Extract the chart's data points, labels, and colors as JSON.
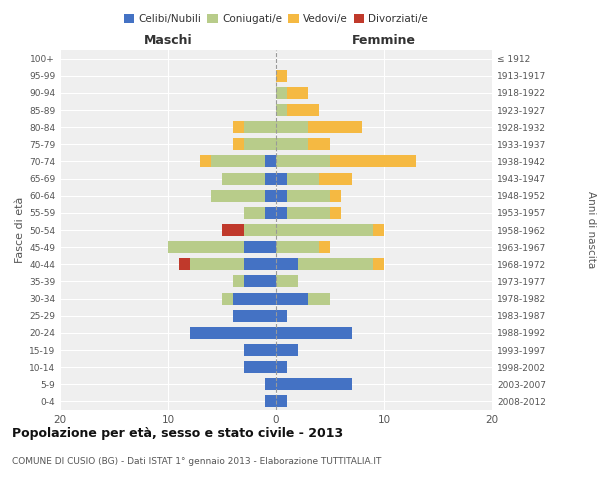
{
  "age_groups": [
    "0-4",
    "5-9",
    "10-14",
    "15-19",
    "20-24",
    "25-29",
    "30-34",
    "35-39",
    "40-44",
    "45-49",
    "50-54",
    "55-59",
    "60-64",
    "65-69",
    "70-74",
    "75-79",
    "80-84",
    "85-89",
    "90-94",
    "95-99",
    "100+"
  ],
  "birth_years": [
    "2008-2012",
    "2003-2007",
    "1998-2002",
    "1993-1997",
    "1988-1992",
    "1983-1987",
    "1978-1982",
    "1973-1977",
    "1968-1972",
    "1963-1967",
    "1958-1962",
    "1953-1957",
    "1948-1952",
    "1943-1947",
    "1938-1942",
    "1933-1937",
    "1928-1932",
    "1923-1927",
    "1918-1922",
    "1913-1917",
    "≤ 1912"
  ],
  "maschi": {
    "celibi": [
      1,
      1,
      3,
      3,
      8,
      4,
      4,
      3,
      3,
      3,
      0,
      1,
      1,
      1,
      1,
      0,
      0,
      0,
      0,
      0,
      0
    ],
    "coniugati": [
      0,
      0,
      0,
      0,
      0,
      0,
      1,
      1,
      5,
      7,
      3,
      2,
      5,
      4,
      5,
      3,
      3,
      0,
      0,
      0,
      0
    ],
    "vedovi": [
      0,
      0,
      0,
      0,
      0,
      0,
      0,
      0,
      0,
      0,
      0,
      0,
      0,
      0,
      1,
      1,
      1,
      0,
      0,
      0,
      0
    ],
    "divorziati": [
      0,
      0,
      0,
      0,
      0,
      0,
      0,
      0,
      1,
      0,
      2,
      0,
      0,
      0,
      0,
      0,
      0,
      0,
      0,
      0,
      0
    ]
  },
  "femmine": {
    "nubili": [
      1,
      7,
      1,
      2,
      7,
      1,
      3,
      0,
      2,
      0,
      0,
      1,
      1,
      1,
      0,
      0,
      0,
      0,
      0,
      0,
      0
    ],
    "coniugate": [
      0,
      0,
      0,
      0,
      0,
      0,
      2,
      2,
      7,
      4,
      9,
      4,
      4,
      3,
      5,
      3,
      3,
      1,
      1,
      0,
      0
    ],
    "vedove": [
      0,
      0,
      0,
      0,
      0,
      0,
      0,
      0,
      1,
      1,
      1,
      1,
      1,
      3,
      8,
      2,
      5,
      3,
      2,
      1,
      0
    ],
    "divorziate": [
      0,
      0,
      0,
      0,
      0,
      0,
      0,
      0,
      0,
      0,
      0,
      0,
      0,
      0,
      0,
      0,
      0,
      0,
      0,
      0,
      0
    ]
  },
  "colors": {
    "celibi_nubili": "#4472C4",
    "coniugati": "#B8CC8A",
    "vedovi": "#F5B942",
    "divorziati": "#C0392B"
  },
  "xlim": 20,
  "title": "Popolazione per età, sesso e stato civile - 2013",
  "subtitle": "COMUNE DI CUSIO (BG) - Dati ISTAT 1° gennaio 2013 - Elaborazione TUTTITALIA.IT",
  "ylabel_left": "Fasce di età",
  "ylabel_right": "Anni di nascita",
  "xlabel_left": "Maschi",
  "xlabel_right": "Femmine",
  "background_color": "#efefef"
}
